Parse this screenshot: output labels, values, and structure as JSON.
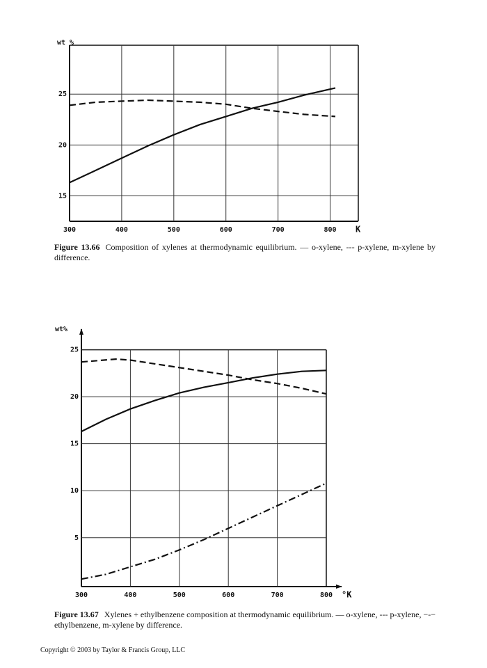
{
  "chart_data": [
    {
      "type": "line",
      "y_label": "wt %",
      "x_label": "K",
      "xlim": [
        300,
        854
      ],
      "ylim": [
        12.5,
        29.8
      ],
      "xticks": [
        300,
        400,
        500,
        600,
        700,
        800
      ],
      "yticks": [
        15,
        20,
        25
      ],
      "grid": true,
      "series": [
        {
          "style": "solid",
          "color": "#111111",
          "x": [
            300,
            350,
            400,
            450,
            500,
            550,
            600,
            650,
            700,
            750,
            810
          ],
          "values": [
            16.3,
            17.5,
            18.7,
            19.9,
            21.0,
            22.0,
            22.8,
            23.6,
            24.2,
            24.9,
            25.6
          ]
        },
        {
          "style": "dashed",
          "color": "#111111",
          "x": [
            300,
            350,
            400,
            450,
            500,
            550,
            600,
            650,
            700,
            750,
            810
          ],
          "values": [
            23.9,
            24.2,
            24.3,
            24.4,
            24.3,
            24.2,
            24.0,
            23.6,
            23.3,
            23.0,
            22.8
          ]
        }
      ],
      "caption_label": "Figure 13.66",
      "caption": "Composition of xylenes at thermodynamic equilibrium. — o-xylene, --- p-xylene, m-xylene by difference."
    },
    {
      "type": "line",
      "y_label": "wt%",
      "x_label": "°K",
      "xlim": [
        300,
        800
      ],
      "ylim": [
        -0.2,
        26.6
      ],
      "xticks": [
        300,
        400,
        500,
        600,
        700,
        800
      ],
      "yticks": [
        5,
        10,
        15,
        20,
        25
      ],
      "grid": true,
      "series": [
        {
          "style": "solid",
          "color": "#111111",
          "x": [
            300,
            350,
            400,
            450,
            500,
            550,
            600,
            650,
            700,
            750,
            800
          ],
          "values": [
            16.3,
            17.6,
            18.7,
            19.6,
            20.4,
            21.0,
            21.5,
            22.0,
            22.4,
            22.7,
            22.8
          ]
        },
        {
          "style": "dashed",
          "color": "#111111",
          "x": [
            300,
            370,
            400,
            450,
            500,
            550,
            600,
            650,
            700,
            750,
            800
          ],
          "values": [
            23.7,
            24.0,
            23.9,
            23.5,
            23.1,
            22.7,
            22.3,
            21.8,
            21.4,
            20.9,
            20.3
          ]
        },
        {
          "style": "dashdot",
          "color": "#111111",
          "x": [
            300,
            350,
            400,
            450,
            500,
            550,
            600,
            650,
            700,
            750,
            800
          ],
          "values": [
            0.6,
            1.1,
            1.9,
            2.7,
            3.7,
            4.8,
            6.0,
            7.2,
            8.4,
            9.6,
            10.8
          ]
        }
      ],
      "caption_label": "Figure 13.67",
      "caption": "Xylenes + ethylbenzene composition at thermodynamic equilibrium. — o-xylene, --- p-xylene, −-− ethylbenzene, m-xylene by difference."
    }
  ],
  "footer": "Copyright © 2003 by Taylor & Francis Group, LLC"
}
